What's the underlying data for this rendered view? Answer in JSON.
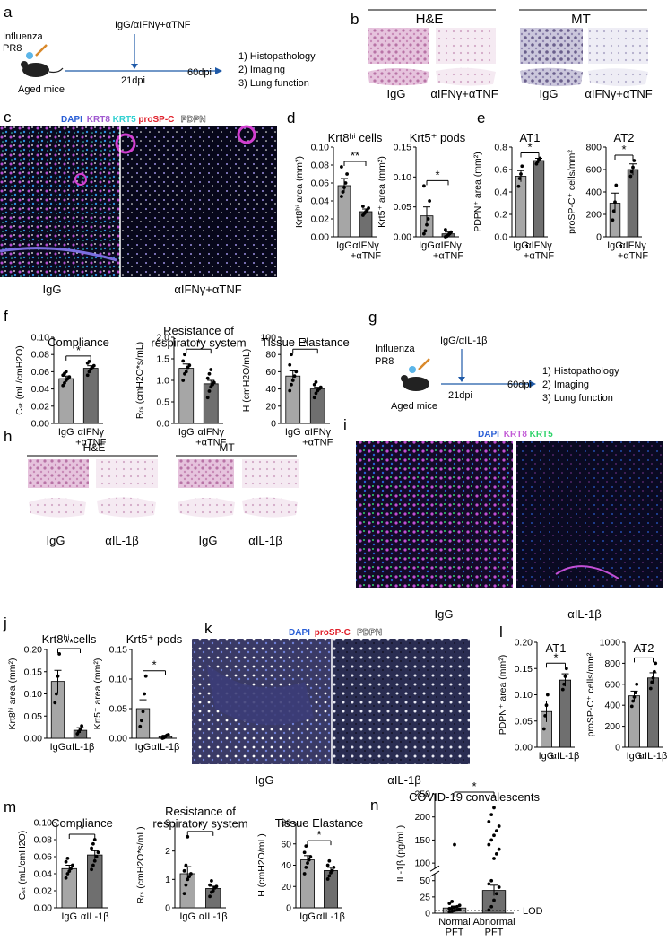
{
  "panels": {
    "a": {
      "letter": "a",
      "influenza": "Influenza",
      "strain": "PR8",
      "treatment": "IgG/αIFNγ+αTNF",
      "day1": "21dpi",
      "day2": "60dpi",
      "mice": "Aged mice",
      "outcomes": [
        "1)   Histopathology",
        "2)   Imaging",
        "3)   Lung function"
      ]
    },
    "b": {
      "letter": "b",
      "stains": [
        "H&E",
        "MT"
      ],
      "groups": [
        "IgG",
        "αIFNγ+αTNF",
        "IgG",
        "αIFNγ+αTNF"
      ]
    },
    "c": {
      "letter": "c",
      "legend": [
        {
          "label": "DAPI",
          "color": "#2a5fd6"
        },
        {
          "label": "KRT8",
          "color": "#a05ad0"
        },
        {
          "label": "KRT5",
          "color": "#33d1d1"
        },
        {
          "label": "proSP-C",
          "color": "#e01f2a"
        },
        {
          "label": "PDPN",
          "color": "#ffffff"
        }
      ],
      "groups": [
        "IgG",
        "αIFNγ+αTNF"
      ]
    },
    "g": {
      "letter": "g",
      "influenza": "Influenza",
      "strain": "PR8",
      "treatment": "IgG/αIL-1β",
      "day1": "21dpi",
      "day2": "60dpi",
      "mice": "Aged mice",
      "outcomes": [
        "1)   Histopathology",
        "2)   Imaging",
        "3)   Lung function"
      ]
    },
    "h": {
      "letter": "h",
      "stains": [
        "H&E",
        "MT"
      ],
      "groups": [
        "IgG",
        "αIL-1β",
        "IgG",
        "αIL-1β"
      ]
    },
    "i": {
      "letter": "i",
      "legend": [
        {
          "label": "DAPI",
          "color": "#2a5fd6"
        },
        {
          "label": "KRT8",
          "color": "#c25ad6"
        },
        {
          "label": "KRT5",
          "color": "#2fd36a"
        }
      ],
      "groups": [
        "IgG",
        "αIL-1β"
      ]
    },
    "k": {
      "letter": "k",
      "legend": [
        {
          "label": "DAPI",
          "color": "#2a5fd6"
        },
        {
          "label": "proSP-C",
          "color": "#e01f2a"
        },
        {
          "label": "PDPN",
          "color": "#ffffff"
        }
      ],
      "groups": [
        "IgG",
        "αIL-1β"
      ]
    }
  },
  "colors": {
    "bar_fill": "#a6a6a6",
    "bar_dark": "#6f6f6f",
    "axis": "#000000"
  },
  "chart_data": [
    {
      "panel": "d",
      "type": "bar",
      "title": "Krt8ʰⁱ cells",
      "ylabel": "Krt8ʰⁱ area (mm²)",
      "categories": [
        "IgG",
        "αIFNγ\n+αTNF"
      ],
      "values": [
        0.057,
        0.028
      ],
      "errors": [
        0.008,
        0.003
      ],
      "ylim": [
        0,
        0.1
      ],
      "yticks": [
        "0.00",
        "0.02",
        "0.04",
        "0.06",
        "0.08",
        "0.10"
      ],
      "points": [
        [
          0.045,
          0.05,
          0.055,
          0.06,
          0.07,
          0.078
        ],
        [
          0.024,
          0.026,
          0.028,
          0.03,
          0.032,
          0.034
        ]
      ],
      "significance": "**"
    },
    {
      "panel": "d",
      "type": "bar",
      "title": "Krt5⁺ pods",
      "ylabel": "Krt5⁺ area (mm²)",
      "categories": [
        "IgG",
        "αIFNγ\n+αTNF"
      ],
      "values": [
        0.035,
        0.005
      ],
      "errors": [
        0.015,
        0.003
      ],
      "ylim": [
        0,
        0.15
      ],
      "yticks": [
        "0.00",
        "0.05",
        "0.10",
        "0.15"
      ],
      "points": [
        [
          0.005,
          0.01,
          0.02,
          0.03,
          0.06,
          0.085
        ],
        [
          0.0,
          0.001,
          0.003,
          0.005,
          0.008,
          0.012
        ]
      ],
      "significance": "*"
    },
    {
      "panel": "e",
      "type": "bar",
      "title": "AT1",
      "ylabel": "PDPN⁺ area (mm²)",
      "categories": [
        "IgG",
        "αIFNγ\n+αTNF"
      ],
      "values": [
        0.54,
        0.68
      ],
      "errors": [
        0.05,
        0.02
      ],
      "ylim": [
        0,
        0.8
      ],
      "yticks": [
        "0.0",
        "0.2",
        "0.4",
        "0.6",
        "0.8"
      ],
      "points": [
        [
          0.45,
          0.52,
          0.56,
          0.63
        ],
        [
          0.65,
          0.67,
          0.69,
          0.7
        ]
      ],
      "significance": "*"
    },
    {
      "panel": "e",
      "type": "bar",
      "title": "AT2",
      "ylabel": "proSP-C⁺ cells/mm²",
      "categories": [
        "IgG",
        "αIFNγ\n+αTNF"
      ],
      "values": [
        300,
        600
      ],
      "errors": [
        90,
        50
      ],
      "ylim": [
        0,
        800
      ],
      "yticks": [
        "0",
        "200",
        "400",
        "600",
        "800"
      ],
      "points": [
        [
          150,
          230,
          310,
          460
        ],
        [
          540,
          580,
          620,
          680
        ]
      ],
      "significance": "*"
    },
    {
      "panel": "f",
      "type": "bar",
      "title": "Compliance",
      "ylabel": "Cₛₜ (mL/cmH2O)",
      "categories": [
        "IgG",
        "αIFNγ\n+αTNF"
      ],
      "values": [
        0.052,
        0.064
      ],
      "errors": [
        0.003,
        0.003
      ],
      "ylim": [
        0,
        0.1
      ],
      "yticks": [
        "0.00",
        "0.02",
        "0.04",
        "0.06",
        "0.08",
        "0.10"
      ],
      "points": [
        [
          0.044,
          0.047,
          0.05,
          0.052,
          0.054,
          0.056,
          0.058,
          0.06
        ],
        [
          0.056,
          0.06,
          0.063,
          0.065,
          0.067,
          0.07,
          0.072
        ]
      ],
      "significance": "*"
    },
    {
      "panel": "f",
      "type": "bar",
      "title": "Resistance of\nrespiratory system",
      "ylabel": "Rᵣₛ (cmH2O*s/mL)",
      "categories": [
        "IgG",
        "αIFNγ\n+αTNF"
      ],
      "values": [
        1.28,
        0.92
      ],
      "errors": [
        0.1,
        0.08
      ],
      "ylim": [
        0,
        2.0
      ],
      "yticks": [
        "0.0",
        "0.5",
        "1.0",
        "1.5",
        "2.0"
      ],
      "points": [
        [
          1.0,
          1.15,
          1.2,
          1.3,
          1.35,
          1.45,
          1.6
        ],
        [
          0.6,
          0.75,
          0.85,
          0.9,
          0.95,
          1.05,
          1.15,
          1.25
        ]
      ],
      "significance": "*"
    },
    {
      "panel": "f",
      "type": "bar",
      "title": "Tissue Elastance",
      "ylabel": "H (cmH2O/mL)",
      "categories": [
        "IgG",
        "αIFNγ\n+αTNF"
      ],
      "values": [
        55,
        40
      ],
      "errors": [
        6,
        2
      ],
      "ylim": [
        0,
        100
      ],
      "yticks": [
        "0",
        "20",
        "40",
        "60",
        "80",
        "100"
      ],
      "points": [
        [
          38,
          45,
          50,
          55,
          60,
          68,
          80
        ],
        [
          30,
          35,
          38,
          40,
          42,
          45,
          48
        ]
      ],
      "significance": "*"
    },
    {
      "panel": "j",
      "type": "bar",
      "title": "Krt8ʰⁱ cells",
      "ylabel": "Krt8ʰⁱ area (mm²)",
      "categories": [
        "IgG",
        "αIL-1β"
      ],
      "values": [
        0.128,
        0.018
      ],
      "errors": [
        0.025,
        0.006
      ],
      "ylim": [
        0,
        0.2
      ],
      "yticks": [
        "0.00",
        "0.05",
        "0.10",
        "0.15",
        "0.20"
      ],
      "points": [
        [
          0.08,
          0.1,
          0.14,
          0.19
        ],
        [
          0.01,
          0.015,
          0.02,
          0.028
        ]
      ],
      "significance": "**"
    },
    {
      "panel": "j",
      "type": "bar",
      "title": "Krt5⁺ pods",
      "ylabel": "Krt5⁺ area (mm²)",
      "categories": [
        "IgG",
        "αIL-1β"
      ],
      "values": [
        0.05,
        0.003
      ],
      "errors": [
        0.015,
        0.002
      ],
      "ylim": [
        0,
        0.15
      ],
      "yticks": [
        "0.00",
        "0.05",
        "0.10",
        "0.15"
      ],
      "points": [
        [
          0.02,
          0.03,
          0.045,
          0.075,
          0.105
        ],
        [
          0.0,
          0.001,
          0.003,
          0.005,
          0.006
        ]
      ],
      "significance": "*"
    },
    {
      "panel": "l",
      "type": "bar",
      "title": "AT1",
      "ylabel": "PDPN⁺ area (mm²)",
      "categories": [
        "IgG",
        "αIL-1β"
      ],
      "values": [
        0.068,
        0.128
      ],
      "errors": [
        0.02,
        0.012
      ],
      "ylim": [
        0,
        0.2
      ],
      "yticks": [
        "0.00",
        "0.05",
        "0.10",
        "0.15",
        "0.20"
      ],
      "points": [
        [
          0.035,
          0.06,
          0.08,
          0.1
        ],
        [
          0.11,
          0.12,
          0.135,
          0.15
        ]
      ],
      "significance": "*"
    },
    {
      "panel": "l",
      "type": "bar",
      "title": "AT2",
      "ylabel": "proSP-C⁺ cells/mm²",
      "categories": [
        "IgG",
        "αIL-1β"
      ],
      "values": [
        490,
        660
      ],
      "errors": [
        45,
        50
      ],
      "ylim": [
        0,
        1000
      ],
      "yticks": [
        "0",
        "200",
        "400",
        "600",
        "800",
        "1000"
      ],
      "points": [
        [
          390,
          440,
          480,
          520,
          600
        ],
        [
          560,
          620,
          660,
          720,
          800
        ]
      ],
      "significance": "*"
    },
    {
      "panel": "m",
      "type": "bar",
      "title": "Compliance",
      "ylabel": "Cₛₜ (mL/cmH2O)",
      "categories": [
        "IgG",
        "αIL-1β"
      ],
      "values": [
        0.046,
        0.062
      ],
      "errors": [
        0.004,
        0.005
      ],
      "ylim": [
        0,
        0.1
      ],
      "yticks": [
        "0.00",
        "0.02",
        "0.04",
        "0.06",
        "0.08",
        "0.10"
      ],
      "points": [
        [
          0.035,
          0.04,
          0.043,
          0.046,
          0.05,
          0.054,
          0.058
        ],
        [
          0.045,
          0.05,
          0.055,
          0.06,
          0.065,
          0.07,
          0.075,
          0.08
        ]
      ],
      "significance": "*"
    },
    {
      "panel": "m",
      "type": "bar",
      "title": "Resistance of\nrespiratory system",
      "ylabel": "Rᵣₛ (cmH2O*s/mL)",
      "categories": [
        "IgG",
        "αIL-1β"
      ],
      "values": [
        1.2,
        0.68
      ],
      "errors": [
        0.25,
        0.08
      ],
      "ylim": [
        0,
        3
      ],
      "yticks": [
        "0",
        "1",
        "2",
        "3"
      ],
      "points": [
        [
          0.5,
          0.8,
          1.0,
          1.1,
          1.2,
          1.3,
          1.5,
          2.5
        ],
        [
          0.4,
          0.55,
          0.6,
          0.7,
          0.75,
          0.8,
          0.95
        ]
      ],
      "significance": "*"
    },
    {
      "panel": "m",
      "type": "bar",
      "title": "Tissue Elastance",
      "ylabel": "H (cmH2O/mL)",
      "categories": [
        "IgG",
        "αIL-1β"
      ],
      "values": [
        45,
        35
      ],
      "errors": [
        4,
        3
      ],
      "ylim": [
        0,
        80
      ],
      "yticks": [
        "0",
        "20",
        "40",
        "60",
        "80"
      ],
      "points": [
        [
          32,
          38,
          42,
          45,
          48,
          52,
          58
        ],
        [
          27,
          30,
          33,
          35,
          38,
          40,
          44
        ]
      ],
      "significance": "*"
    },
    {
      "panel": "n",
      "type": "bar",
      "title": "COVID-19 convalescents",
      "ylabel": "IL-1β (pg/mL)",
      "categories": [
        "Normal\nPFT",
        "Abnormal\nPFT"
      ],
      "values": [
        8,
        35
      ],
      "errors": [
        3,
        8
      ],
      "axis_break": true,
      "yticks_lower": [
        "0",
        "25",
        "50"
      ],
      "yticks_upper": [
        "100",
        "150",
        "200",
        "250"
      ],
      "ylim_lower": [
        0,
        55
      ],
      "ylim_upper": [
        100,
        250
      ],
      "lod_label": "LOD",
      "lod_value": 4,
      "points": [
        [
          2,
          3,
          4,
          5,
          6,
          7,
          8,
          9,
          10,
          12,
          15,
          18,
          140
        ],
        [
          5,
          10,
          20,
          30,
          40,
          45,
          50,
          110,
          120,
          130,
          140,
          150,
          160,
          170,
          180,
          190,
          205,
          220
        ]
      ],
      "significance": "*"
    }
  ]
}
